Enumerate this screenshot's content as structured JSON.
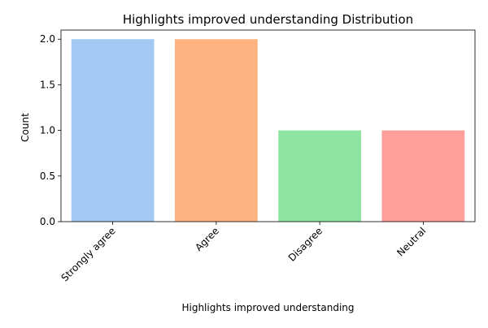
{
  "chart_data": {
    "type": "bar",
    "title": "Highlights improved understanding Distribution",
    "xlabel": "Highlights improved understanding",
    "ylabel": "Count",
    "categories": [
      "Strongly agree",
      "Agree",
      "Disagree",
      "Neutral"
    ],
    "values": [
      2,
      2,
      1,
      1
    ],
    "colors": [
      "#a1c9f4",
      "#ffb482",
      "#8de5a1",
      "#ff9f9b"
    ],
    "ylim": [
      0,
      2.1
    ],
    "yticks": [
      "0.0",
      "0.5",
      "1.0",
      "1.5",
      "2.0"
    ],
    "grid": false,
    "legend": "none"
  }
}
